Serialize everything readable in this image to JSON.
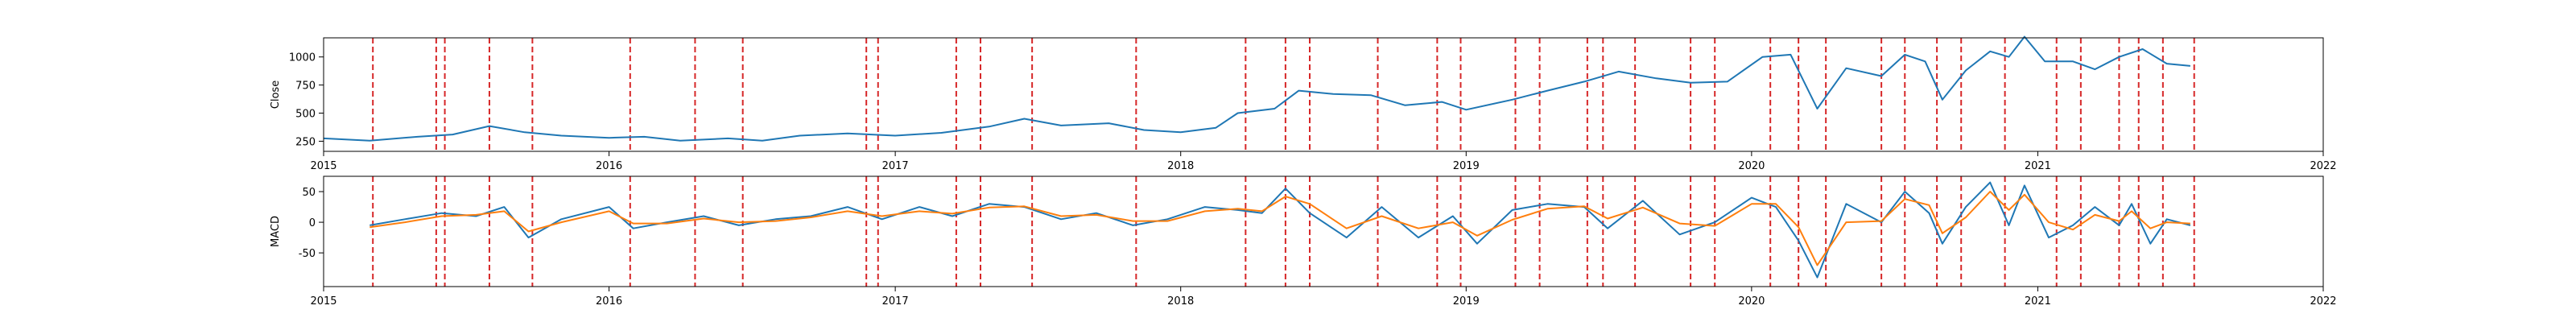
{
  "chart_data": [
    {
      "type": "line",
      "panel": "top",
      "title": "",
      "xlabel": "",
      "ylabel": "Close",
      "xlim": [
        "2015-01-01",
        "2022-01-01"
      ],
      "ylim": [
        160,
        1170
      ],
      "x_ticks": [
        "2015",
        "2016",
        "2017",
        "2018",
        "2019",
        "2020",
        "2021",
        "2022"
      ],
      "y_ticks": [
        250,
        500,
        750,
        1000
      ],
      "grid": false,
      "legend": "none",
      "series": [
        {
          "color": "#1f77b4",
          "x": [
            "2015-01-01",
            "2015-03-01",
            "2015-05-01",
            "2015-06-15",
            "2015-08-01",
            "2015-09-15",
            "2015-11-01",
            "2016-01-01",
            "2016-02-15",
            "2016-04-01",
            "2016-06-01",
            "2016-07-15",
            "2016-09-01",
            "2016-11-01",
            "2017-01-01",
            "2017-03-01",
            "2017-05-01",
            "2017-06-15",
            "2017-08-01",
            "2017-10-01",
            "2017-11-15",
            "2018-01-01",
            "2018-02-15",
            "2018-03-15",
            "2018-05-01",
            "2018-06-01",
            "2018-07-15",
            "2018-09-01",
            "2018-10-15",
            "2018-12-01",
            "2019-01-01",
            "2019-03-01",
            "2019-04-15",
            "2019-06-01",
            "2019-07-15",
            "2019-09-01",
            "2019-10-15",
            "2019-12-01",
            "2020-01-15",
            "2020-02-20",
            "2020-03-25",
            "2020-05-01",
            "2020-06-15",
            "2020-07-15",
            "2020-08-10",
            "2020-09-01",
            "2020-10-01",
            "2020-11-01",
            "2020-11-25",
            "2020-12-15",
            "2021-01-10",
            "2021-02-15",
            "2021-03-15",
            "2021-04-15",
            "2021-05-15",
            "2021-06-15",
            "2021-07-15"
          ],
          "y": [
            275,
            255,
            290,
            310,
            385,
            330,
            300,
            280,
            290,
            255,
            275,
            255,
            300,
            320,
            300,
            325,
            380,
            450,
            390,
            410,
            350,
            330,
            370,
            500,
            540,
            700,
            670,
            660,
            570,
            600,
            530,
            620,
            700,
            780,
            870,
            810,
            770,
            780,
            1000,
            1020,
            540,
            900,
            830,
            1020,
            960,
            620,
            880,
            1050,
            1000,
            1180,
            960,
            960,
            890,
            1000,
            1070,
            940,
            920
          ]
        }
      ]
    },
    {
      "type": "line",
      "panel": "bottom",
      "title": "",
      "xlabel": "",
      "ylabel": "MACD",
      "xlim": [
        "2015-01-01",
        "2022-01-01"
      ],
      "ylim": [
        -105,
        75
      ],
      "x_ticks": [
        "2015",
        "2016",
        "2017",
        "2018",
        "2019",
        "2020",
        "2021",
        "2022"
      ],
      "y_ticks": [
        -50,
        0,
        50
      ],
      "grid": false,
      "legend": "none",
      "series": [
        {
          "color": "#1f77b4",
          "x": [
            "2015-03-01",
            "2015-04-15",
            "2015-06-01",
            "2015-07-15",
            "2015-08-20",
            "2015-09-20",
            "2015-11-01",
            "2016-01-01",
            "2016-02-01",
            "2016-03-15",
            "2016-05-01",
            "2016-06-15",
            "2016-08-01",
            "2016-09-15",
            "2016-11-01",
            "2016-12-15",
            "2017-02-01",
            "2017-03-15",
            "2017-05-01",
            "2017-06-15",
            "2017-08-01",
            "2017-09-15",
            "2017-11-01",
            "2017-12-15",
            "2018-02-01",
            "2018-03-15",
            "2018-04-15",
            "2018-05-15",
            "2018-06-15",
            "2018-08-01",
            "2018-09-15",
            "2018-11-01",
            "2018-12-15",
            "2019-01-15",
            "2019-03-01",
            "2019-04-15",
            "2019-06-01",
            "2019-07-01",
            "2019-08-15",
            "2019-10-01",
            "2019-11-15",
            "2020-01-01",
            "2020-02-01",
            "2020-03-01",
            "2020-03-25",
            "2020-05-01",
            "2020-06-15",
            "2020-07-15",
            "2020-08-15",
            "2020-09-01",
            "2020-10-01",
            "2020-11-01",
            "2020-11-25",
            "2020-12-15",
            "2021-01-15",
            "2021-02-15",
            "2021-03-15",
            "2021-04-15",
            "2021-05-01",
            "2021-05-25",
            "2021-06-15",
            "2021-07-15"
          ],
          "y": [
            -5,
            5,
            15,
            10,
            25,
            -25,
            5,
            25,
            -10,
            0,
            10,
            -5,
            5,
            10,
            25,
            5,
            25,
            10,
            30,
            25,
            5,
            15,
            -5,
            5,
            25,
            20,
            15,
            55,
            15,
            -25,
            25,
            -25,
            10,
            -35,
            20,
            30,
            25,
            -10,
            35,
            -20,
            0,
            40,
            25,
            -30,
            -90,
            30,
            0,
            50,
            15,
            -35,
            25,
            65,
            -5,
            60,
            -25,
            -5,
            25,
            -5,
            30,
            -35,
            5,
            -5
          ]
        },
        {
          "color": "#ff7f0e",
          "x": [
            "2015-03-01",
            "2015-04-15",
            "2015-06-01",
            "2015-07-15",
            "2015-08-20",
            "2015-09-20",
            "2015-11-01",
            "2016-01-01",
            "2016-02-01",
            "2016-03-15",
            "2016-05-01",
            "2016-06-15",
            "2016-08-01",
            "2016-09-15",
            "2016-11-01",
            "2016-12-15",
            "2017-02-01",
            "2017-03-15",
            "2017-05-01",
            "2017-06-15",
            "2017-08-01",
            "2017-09-15",
            "2017-11-01",
            "2017-12-15",
            "2018-02-01",
            "2018-03-15",
            "2018-04-15",
            "2018-05-15",
            "2018-06-15",
            "2018-08-01",
            "2018-09-15",
            "2018-11-01",
            "2018-12-15",
            "2019-01-15",
            "2019-03-01",
            "2019-04-15",
            "2019-06-01",
            "2019-07-01",
            "2019-08-15",
            "2019-10-01",
            "2019-11-15",
            "2020-01-01",
            "2020-02-01",
            "2020-03-01",
            "2020-03-25",
            "2020-05-01",
            "2020-06-15",
            "2020-07-15",
            "2020-08-15",
            "2020-09-01",
            "2020-10-01",
            "2020-11-01",
            "2020-11-25",
            "2020-12-15",
            "2021-01-15",
            "2021-02-15",
            "2021-03-15",
            "2021-04-15",
            "2021-05-01",
            "2021-05-25",
            "2021-06-15",
            "2021-07-15"
          ],
          "y": [
            -8,
            0,
            10,
            12,
            18,
            -15,
            0,
            18,
            -2,
            -2,
            6,
            0,
            2,
            8,
            18,
            10,
            18,
            14,
            24,
            26,
            10,
            12,
            2,
            2,
            18,
            22,
            18,
            42,
            30,
            -10,
            10,
            -10,
            0,
            -22,
            4,
            22,
            26,
            6,
            24,
            -2,
            -6,
            30,
            30,
            -8,
            -70,
            0,
            2,
            38,
            28,
            -18,
            8,
            50,
            20,
            45,
            0,
            -12,
            12,
            2,
            18,
            -10,
            0,
            -2
          ]
        }
      ]
    }
  ],
  "event_markers": {
    "color": "#d62728",
    "dates": [
      "2015-03-05",
      "2015-05-25",
      "2015-06-05",
      "2015-08-01",
      "2015-09-25",
      "2016-01-28",
      "2016-04-20",
      "2016-06-20",
      "2016-11-25",
      "2016-12-10",
      "2017-03-20",
      "2017-04-20",
      "2017-06-25",
      "2017-11-05",
      "2018-03-25",
      "2018-05-15",
      "2018-06-15",
      "2018-09-10",
      "2018-11-25",
      "2018-12-25",
      "2019-03-05",
      "2019-04-05",
      "2019-06-05",
      "2019-06-25",
      "2019-08-05",
      "2019-10-15",
      "2019-11-15",
      "2020-01-25",
      "2020-03-01",
      "2020-04-05",
      "2020-06-15",
      "2020-07-15",
      "2020-08-25",
      "2020-09-25",
      "2020-11-20",
      "2021-01-25",
      "2021-02-25",
      "2021-04-15",
      "2021-05-10",
      "2021-06-10",
      "2021-07-20"
    ]
  }
}
